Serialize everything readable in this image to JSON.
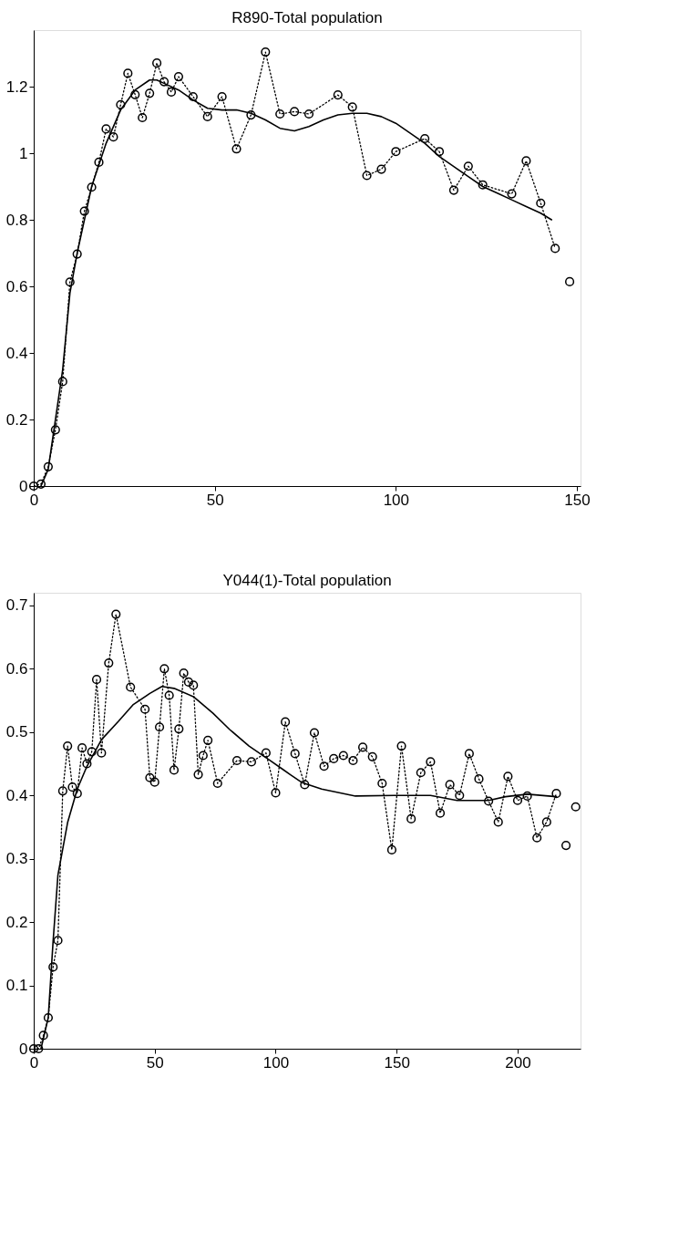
{
  "chart_data": [
    {
      "type": "line",
      "title": "R890-Total population",
      "xlim": [
        0,
        151
      ],
      "xticks": [
        0,
        50,
        100,
        150
      ],
      "ylim": [
        0,
        1.37
      ],
      "yticks": [
        0,
        0.2,
        0.4,
        0.6,
        0.8,
        1,
        1.2
      ],
      "grid": false,
      "series": [
        {
          "type": "line",
          "color": "#000000",
          "marker": "circle",
          "line_style": "dotted",
          "x": [
            0,
            2,
            4,
            6,
            8,
            10,
            12,
            14,
            16,
            18,
            20,
            22,
            24,
            26,
            28,
            30,
            32,
            34,
            36,
            38,
            40,
            44,
            48,
            52,
            56,
            60,
            64,
            68,
            72,
            76,
            84,
            88,
            92,
            96,
            100,
            108,
            112,
            116,
            120,
            124,
            132,
            136,
            140,
            144
          ],
          "values": [
            0,
            0.006,
            0.058,
            0.169,
            0.314,
            0.613,
            0.697,
            0.826,
            0.898,
            0.973,
            1.073,
            1.049,
            1.146,
            1.24,
            1.176,
            1.107,
            1.18,
            1.271,
            1.215,
            1.184,
            1.23,
            1.17,
            1.11,
            1.17,
            1.013,
            1.115,
            1.304,
            1.118,
            1.125,
            1.118,
            1.175,
            1.139,
            0.933,
            0.952,
            1.005,
            1.044,
            1.005,
            0.889,
            0.961,
            0.905,
            0.878,
            0.977,
            0.85,
            0.714
          ]
        },
        {
          "type": "scatter",
          "color": "#000000",
          "marker": "circle",
          "x": [
            148
          ],
          "values": [
            0.614
          ]
        },
        {
          "type": "line",
          "color": "#000000",
          "marker": "none",
          "line_style": "solid",
          "x": [
            2,
            4,
            8,
            10,
            12,
            16,
            20,
            24,
            28,
            32,
            34,
            36,
            40,
            44,
            48,
            52,
            56,
            60,
            64,
            68,
            72,
            76,
            80,
            84,
            88,
            92,
            96,
            100,
            104,
            108,
            112,
            116,
            120,
            124,
            128,
            132,
            136,
            140,
            143
          ],
          "values": [
            0,
            0.05,
            0.35,
            0.58,
            0.7,
            0.9,
            1.03,
            1.13,
            1.19,
            1.22,
            1.22,
            1.21,
            1.19,
            1.16,
            1.135,
            1.13,
            1.13,
            1.12,
            1.1,
            1.075,
            1.067,
            1.08,
            1.1,
            1.115,
            1.12,
            1.12,
            1.11,
            1.09,
            1.06,
            1.03,
            0.99,
            0.96,
            0.93,
            0.9,
            0.88,
            0.86,
            0.84,
            0.82,
            0.8
          ]
        }
      ]
    },
    {
      "type": "line",
      "title": "Y044(1)-Total population",
      "xlim": [
        0,
        226
      ],
      "xticks": [
        0,
        50,
        100,
        150,
        200
      ],
      "ylim": [
        0,
        0.72
      ],
      "yticks": [
        0,
        0.1,
        0.2,
        0.3,
        0.4,
        0.5,
        0.6,
        0.7
      ],
      "grid": false,
      "series": [
        {
          "type": "line",
          "color": "#000000",
          "marker": "circle",
          "line_style": "dotted",
          "x": [
            0,
            2,
            4,
            6,
            8,
            10,
            12,
            14,
            16,
            18,
            20,
            22,
            24,
            26,
            28,
            31,
            34,
            40,
            46,
            48,
            50,
            52,
            54,
            56,
            58,
            60,
            62,
            64,
            66,
            68,
            70,
            72,
            76,
            84,
            90,
            96,
            100,
            104,
            108,
            112,
            116,
            120,
            124,
            128,
            132,
            136,
            140,
            144,
            148,
            152,
            156,
            160,
            164,
            168,
            172,
            176,
            180,
            184,
            188,
            192,
            196,
            200,
            204,
            208,
            212,
            216
          ],
          "values": [
            0,
            0,
            0.021,
            0.049,
            0.129,
            0.171,
            0.407,
            0.478,
            0.413,
            0.403,
            0.475,
            0.45,
            0.469,
            0.583,
            0.467,
            0.609,
            0.686,
            0.571,
            0.536,
            0.428,
            0.421,
            0.508,
            0.6,
            0.558,
            0.44,
            0.505,
            0.593,
            0.579,
            0.574,
            0.433,
            0.463,
            0.487,
            0.419,
            0.455,
            0.453,
            0.467,
            0.404,
            0.516,
            0.466,
            0.417,
            0.499,
            0.446,
            0.458,
            0.463,
            0.455,
            0.476,
            0.461,
            0.419,
            0.314,
            0.478,
            0.363,
            0.436,
            0.453,
            0.372,
            0.417,
            0.4,
            0.466,
            0.426,
            0.391,
            0.358,
            0.43,
            0.392,
            0.399,
            0.333,
            0.358,
            0.403
          ]
        },
        {
          "type": "scatter",
          "color": "#000000",
          "marker": "circle",
          "x": [
            220,
            224
          ],
          "values": [
            0.321,
            0.382
          ]
        },
        {
          "type": "line",
          "color": "#000000",
          "marker": "none",
          "line_style": "solid",
          "x": [
            3,
            6,
            8,
            10,
            14,
            18,
            22,
            28,
            35,
            41,
            48,
            53,
            58,
            66,
            74,
            81,
            89,
            97,
            103,
            106,
            111,
            119,
            133,
            149,
            164,
            175,
            188,
            195,
            204,
            216
          ],
          "values": [
            0,
            0.049,
            0.169,
            0.274,
            0.357,
            0.41,
            0.446,
            0.488,
            0.517,
            0.543,
            0.561,
            0.572,
            0.569,
            0.556,
            0.53,
            0.504,
            0.478,
            0.457,
            0.441,
            0.433,
            0.42,
            0.41,
            0.399,
            0.4,
            0.4,
            0.392,
            0.392,
            0.398,
            0.402,
            0.398
          ]
        }
      ]
    }
  ]
}
